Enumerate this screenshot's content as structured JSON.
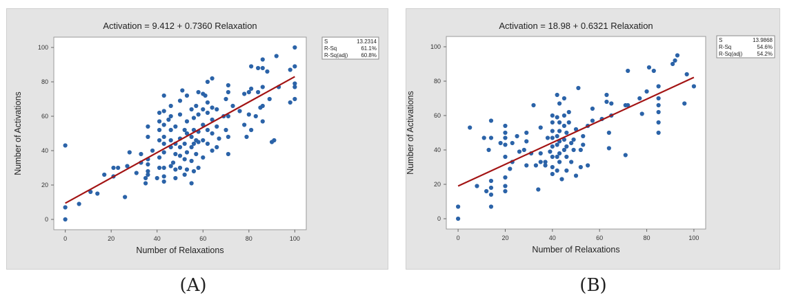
{
  "figure": {
    "caption_a": "(A)",
    "caption_b": "(B)"
  },
  "colors": {
    "panel_background": "#e4e4e4",
    "plot_background": "#ffffff",
    "marker": "#2b63a8",
    "fit_line": "#a31414"
  },
  "chart_data": [
    {
      "type": "scatter",
      "title": "Activation = 9.412 + 0.7360 Relaxation",
      "xlabel": "Number of Relaxations",
      "ylabel": "Number of Activations",
      "xlim": [
        -5,
        105
      ],
      "ylim": [
        -6,
        106
      ],
      "xticks": [
        0,
        20,
        40,
        60,
        80,
        100
      ],
      "yticks": [
        0,
        20,
        40,
        60,
        80,
        100
      ],
      "grid": false,
      "legend_position": "top-right",
      "stats": [
        {
          "label": "S",
          "value": "13.2314"
        },
        {
          "label": "R-Sq",
          "value": "61.1%"
        },
        {
          "label": "R-Sq(adj)",
          "value": "60.8%"
        }
      ],
      "fit": {
        "intercept": 9.412,
        "slope": 0.736
      },
      "points": [
        [
          0,
          0
        ],
        [
          0,
          7
        ],
        [
          0,
          43
        ],
        [
          6,
          9
        ],
        [
          11,
          16
        ],
        [
          14,
          15
        ],
        [
          17,
          26
        ],
        [
          21,
          25
        ],
        [
          21,
          30
        ],
        [
          23,
          30
        ],
        [
          26,
          13
        ],
        [
          27,
          31
        ],
        [
          28,
          39
        ],
        [
          31,
          27
        ],
        [
          33,
          33
        ],
        [
          33,
          38
        ],
        [
          35,
          21
        ],
        [
          35,
          24
        ],
        [
          36,
          26
        ],
        [
          36,
          28
        ],
        [
          36,
          32
        ],
        [
          36,
          35
        ],
        [
          36,
          48
        ],
        [
          36,
          54
        ],
        [
          38,
          40
        ],
        [
          40,
          24
        ],
        [
          41,
          30
        ],
        [
          41,
          36
        ],
        [
          41,
          46
        ],
        [
          41,
          52
        ],
        [
          41,
          57
        ],
        [
          41,
          62
        ],
        [
          43,
          22
        ],
        [
          43,
          25
        ],
        [
          43,
          30
        ],
        [
          43,
          39
        ],
        [
          43,
          44
        ],
        [
          43,
          48
        ],
        [
          43,
          55
        ],
        [
          43,
          63
        ],
        [
          43,
          72
        ],
        [
          45,
          58
        ],
        [
          46,
          31
        ],
        [
          46,
          42
        ],
        [
          46,
          46
        ],
        [
          46,
          52
        ],
        [
          46,
          60
        ],
        [
          46,
          66
        ],
        [
          47,
          33
        ],
        [
          48,
          24
        ],
        [
          48,
          29
        ],
        [
          48,
          38
        ],
        [
          48,
          44
        ],
        [
          48,
          54
        ],
        [
          50,
          30
        ],
        [
          50,
          37
        ],
        [
          50,
          42
        ],
        [
          50,
          47
        ],
        [
          50,
          61
        ],
        [
          50,
          69
        ],
        [
          51,
          75
        ],
        [
          52,
          26
        ],
        [
          52,
          35
        ],
        [
          52,
          44
        ],
        [
          52,
          52
        ],
        [
          53,
          29
        ],
        [
          53,
          39
        ],
        [
          53,
          50
        ],
        [
          53,
          57
        ],
        [
          53,
          72
        ],
        [
          55,
          21
        ],
        [
          55,
          34
        ],
        [
          55,
          42
        ],
        [
          55,
          48
        ],
        [
          55,
          64
        ],
        [
          56,
          28
        ],
        [
          56,
          44
        ],
        [
          56,
          52
        ],
        [
          56,
          59
        ],
        [
          57,
          38
        ],
        [
          57,
          46
        ],
        [
          57,
          66
        ],
        [
          58,
          30
        ],
        [
          58,
          45
        ],
        [
          58,
          51
        ],
        [
          58,
          61
        ],
        [
          58,
          74
        ],
        [
          60,
          36
        ],
        [
          60,
          46
        ],
        [
          60,
          55
        ],
        [
          60,
          64
        ],
        [
          60,
          73
        ],
        [
          61,
          72
        ],
        [
          62,
          44
        ],
        [
          62,
          52
        ],
        [
          62,
          62
        ],
        [
          62,
          68
        ],
        [
          62,
          80
        ],
        [
          64,
          40
        ],
        [
          64,
          50
        ],
        [
          64,
          58
        ],
        [
          64,
          65
        ],
        [
          64,
          82
        ],
        [
          66,
          42
        ],
        [
          66,
          54
        ],
        [
          66,
          64
        ],
        [
          67,
          47
        ],
        [
          69,
          60
        ],
        [
          70,
          52
        ],
        [
          70,
          70
        ],
        [
          71,
          38
        ],
        [
          71,
          48
        ],
        [
          71,
          60
        ],
        [
          71,
          74
        ],
        [
          71,
          78
        ],
        [
          73,
          66
        ],
        [
          76,
          63
        ],
        [
          78,
          55
        ],
        [
          78,
          73
        ],
        [
          79,
          48
        ],
        [
          80,
          61
        ],
        [
          80,
          74
        ],
        [
          81,
          52
        ],
        [
          81,
          76
        ],
        [
          81,
          89
        ],
        [
          83,
          60
        ],
        [
          84,
          74
        ],
        [
          84,
          88
        ],
        [
          85,
          65
        ],
        [
          86,
          57
        ],
        [
          86,
          66
        ],
        [
          86,
          77
        ],
        [
          86,
          88
        ],
        [
          86,
          93
        ],
        [
          88,
          86
        ],
        [
          89,
          70
        ],
        [
          90,
          45
        ],
        [
          91,
          46
        ],
        [
          92,
          95
        ],
        [
          93,
          77
        ],
        [
          98,
          68
        ],
        [
          98,
          87
        ],
        [
          100,
          70
        ],
        [
          100,
          77
        ],
        [
          100,
          79
        ],
        [
          100,
          89
        ],
        [
          100,
          100
        ]
      ]
    },
    {
      "type": "scatter",
      "title": "Activation = 18.98 + 0.6321 Relaxation",
      "xlabel": "Number of Relaxations",
      "ylabel": "Number of Activations",
      "xlim": [
        -5,
        105
      ],
      "ylim": [
        -6,
        106
      ],
      "xticks": [
        0,
        20,
        40,
        60,
        80,
        100
      ],
      "yticks": [
        0,
        20,
        40,
        60,
        80,
        100
      ],
      "grid": false,
      "legend_position": "top-right",
      "stats": [
        {
          "label": "S",
          "value": "13.9868"
        },
        {
          "label": "R-Sq",
          "value": "54.6%"
        },
        {
          "label": "R-Sq(adj)",
          "value": "54.2%"
        }
      ],
      "fit": {
        "intercept": 18.98,
        "slope": 0.6321
      },
      "points": [
        [
          0,
          0
        ],
        [
          0,
          7
        ],
        [
          5,
          53
        ],
        [
          8,
          19
        ],
        [
          11,
          47
        ],
        [
          12,
          16
        ],
        [
          13,
          40
        ],
        [
          14,
          7
        ],
        [
          14,
          14
        ],
        [
          14,
          18
        ],
        [
          14,
          22
        ],
        [
          14,
          47
        ],
        [
          14,
          57
        ],
        [
          18,
          44
        ],
        [
          20,
          16
        ],
        [
          20,
          19
        ],
        [
          20,
          24
        ],
        [
          20,
          36
        ],
        [
          20,
          43
        ],
        [
          20,
          47
        ],
        [
          20,
          50
        ],
        [
          20,
          54
        ],
        [
          22,
          29
        ],
        [
          23,
          33
        ],
        [
          23,
          44
        ],
        [
          25,
          48
        ],
        [
          26,
          39
        ],
        [
          28,
          40
        ],
        [
          29,
          31
        ],
        [
          29,
          45
        ],
        [
          29,
          50
        ],
        [
          31,
          38
        ],
        [
          32,
          66
        ],
        [
          33,
          31
        ],
        [
          34,
          17
        ],
        [
          35,
          33
        ],
        [
          35,
          38
        ],
        [
          35,
          53
        ],
        [
          37,
          31
        ],
        [
          37,
          33
        ],
        [
          38,
          47
        ],
        [
          39,
          39
        ],
        [
          40,
          26
        ],
        [
          40,
          30
        ],
        [
          40,
          36
        ],
        [
          40,
          42
        ],
        [
          40,
          47
        ],
        [
          40,
          51
        ],
        [
          40,
          56
        ],
        [
          40,
          60
        ],
        [
          42,
          28
        ],
        [
          42,
          36
        ],
        [
          42,
          43
        ],
        [
          42,
          48
        ],
        [
          42,
          59
        ],
        [
          42,
          72
        ],
        [
          43,
          33
        ],
        [
          43,
          38
        ],
        [
          43,
          45
        ],
        [
          43,
          51
        ],
        [
          43,
          56
        ],
        [
          43,
          67
        ],
        [
          44,
          23
        ],
        [
          45,
          40
        ],
        [
          45,
          46
        ],
        [
          45,
          54
        ],
        [
          45,
          60
        ],
        [
          45,
          70
        ],
        [
          46,
          28
        ],
        [
          46,
          36
        ],
        [
          46,
          42
        ],
        [
          46,
          50
        ],
        [
          47,
          56
        ],
        [
          47,
          62
        ],
        [
          48,
          33
        ],
        [
          48,
          44
        ],
        [
          49,
          40
        ],
        [
          49,
          46
        ],
        [
          50,
          25
        ],
        [
          50,
          52
        ],
        [
          51,
          76
        ],
        [
          52,
          30
        ],
        [
          52,
          40
        ],
        [
          53,
          43
        ],
        [
          53,
          48
        ],
        [
          55,
          31
        ],
        [
          55,
          54
        ],
        [
          57,
          57
        ],
        [
          57,
          64
        ],
        [
          61,
          58
        ],
        [
          63,
          72
        ],
        [
          63,
          68
        ],
        [
          64,
          41
        ],
        [
          64,
          50
        ],
        [
          65,
          60
        ],
        [
          65,
          67
        ],
        [
          71,
          37
        ],
        [
          71,
          66
        ],
        [
          72,
          66
        ],
        [
          72,
          86
        ],
        [
          77,
          70
        ],
        [
          78,
          61
        ],
        [
          80,
          74
        ],
        [
          81,
          88
        ],
        [
          83,
          86
        ],
        [
          85,
          50
        ],
        [
          85,
          56
        ],
        [
          85,
          62
        ],
        [
          85,
          66
        ],
        [
          85,
          70
        ],
        [
          85,
          77
        ],
        [
          91,
          90
        ],
        [
          92,
          92
        ],
        [
          93,
          95
        ],
        [
          96,
          67
        ],
        [
          97,
          84
        ],
        [
          100,
          77
        ]
      ]
    }
  ]
}
